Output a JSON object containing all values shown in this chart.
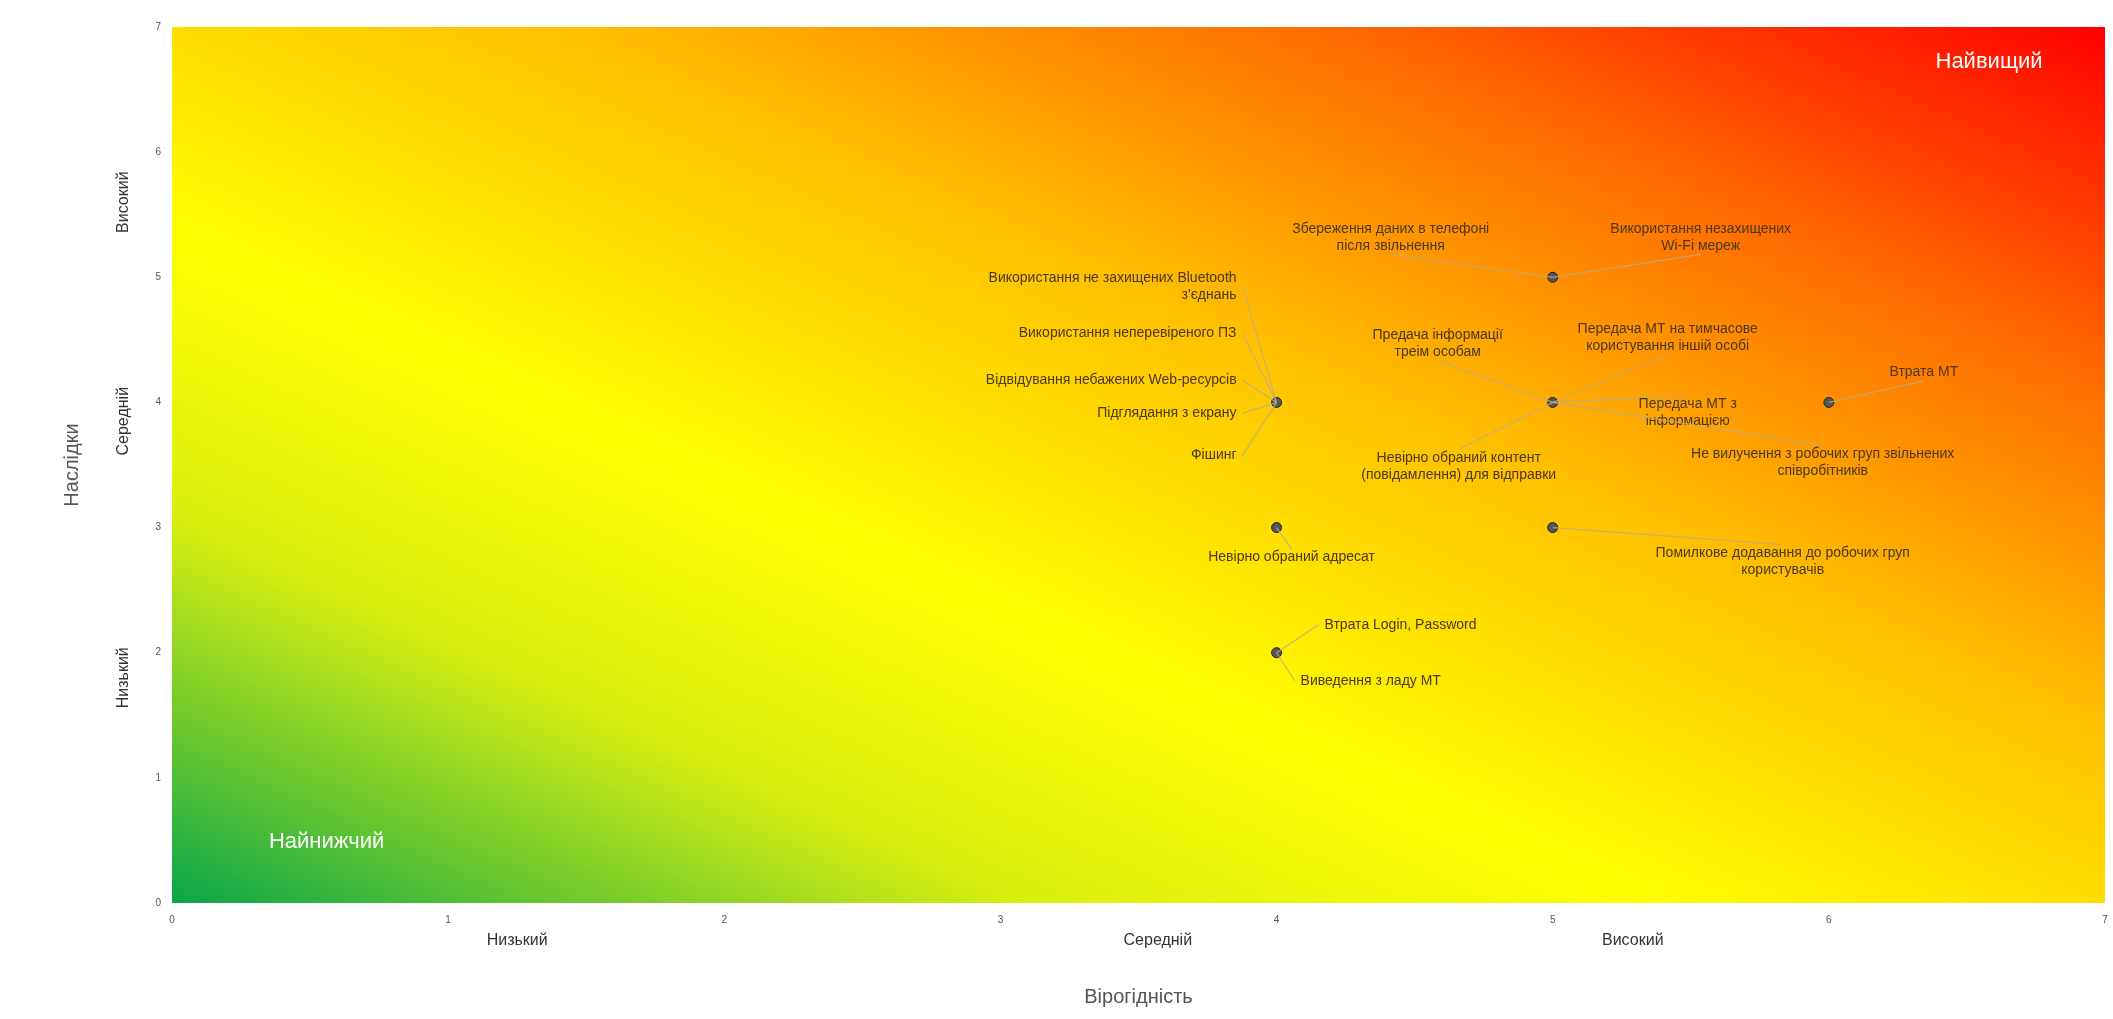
{
  "chart_data": {
    "type": "scatter",
    "xlabel": "Вірогідність",
    "ylabel": "Наслідки",
    "x": [
      4,
      4,
      4,
      5,
      5,
      5,
      6
    ],
    "values": [
      4,
      3,
      2,
      5,
      4,
      3,
      4
    ],
    "color": "#555555",
    "marker": "circle",
    "xlim": [
      0,
      7
    ],
    "ylim": [
      0,
      7
    ],
    "xticks": [
      0,
      1,
      2,
      3,
      4,
      5,
      6,
      7
    ],
    "yticks": [
      0,
      1,
      2,
      3,
      4,
      5,
      6,
      7
    ],
    "grid": false,
    "legend": false,
    "annotations": [
      {
        "text": "Використання не захищених Bluetooth з'єднань",
        "x": 4,
        "y": 4
      },
      {
        "text": "Використання неперевіреного ПЗ",
        "x": 4,
        "y": 4
      },
      {
        "text": "Відвідування небажених Web-ресурсів",
        "x": 4,
        "y": 4
      },
      {
        "text": "Підглядання з екрану",
        "x": 4,
        "y": 4
      },
      {
        "text": "Фішинг",
        "x": 4,
        "y": 4
      },
      {
        "text": "Невірно обраний адресат",
        "x": 4,
        "y": 3
      },
      {
        "text": "Втрата Login, Password",
        "x": 4,
        "y": 2
      },
      {
        "text": "Виведення з ладу МТ",
        "x": 4,
        "y": 2
      },
      {
        "text": "Збереження даних в телефоні після звільнення",
        "x": 5,
        "y": 5
      },
      {
        "text": "Використання незахищених Wi-Fi мереж",
        "x": 5,
        "y": 5
      },
      {
        "text": "Предача інформації треім особам",
        "x": 5,
        "y": 4
      },
      {
        "text": "Передача МТ на тимчасове користування іншій особі",
        "x": 5,
        "y": 4
      },
      {
        "text": "Передача МТ з інформацією",
        "x": 5,
        "y": 4
      },
      {
        "text": "Невірно обраний контент (повідамлення) для відправки",
        "x": 5,
        "y": 4
      },
      {
        "text": "Не вилучення з робочих груп звільнених співробітників",
        "x": 5,
        "y": 4
      },
      {
        "text": "Помилкове додавання до робочих груп користувачів",
        "x": 5,
        "y": 3
      },
      {
        "text": "Втрата МТ",
        "x": 6,
        "y": 4
      },
      "Найвищий",
      "Найнижчий",
      "Низький",
      "Середній",
      "Високий",
      "Низький",
      "Середній",
      "Високий"
    ]
  }
}
